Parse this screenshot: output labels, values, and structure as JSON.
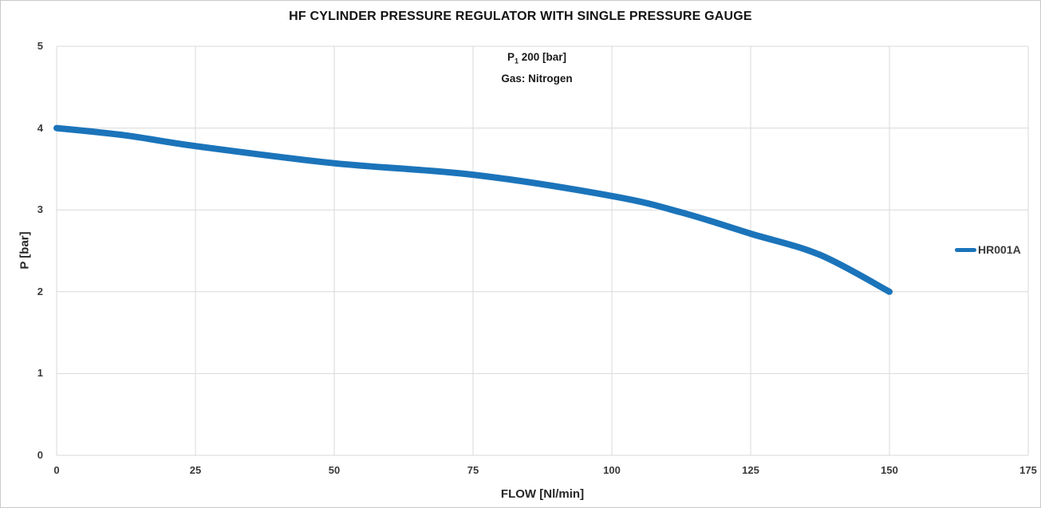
{
  "chart": {
    "annotation": {
      "p_base": "P",
      "p_sub": "1",
      "p_rest": " 200 [bar]",
      "line2": "Gas: Nitrogen"
    }
  },
  "chart_data": {
    "type": "line",
    "title": "HF CYLINDER PRESSURE REGULATOR WITH SINGLE PRESSURE GAUGE",
    "xlabel": "FLOW [Nl/min]",
    "ylabel": "P [bar]",
    "xlim": [
      0,
      175
    ],
    "ylim": [
      0,
      5
    ],
    "xticks": [
      0,
      25,
      50,
      75,
      100,
      125,
      150,
      175
    ],
    "yticks": [
      0,
      1,
      2,
      3,
      4,
      5
    ],
    "grid": true,
    "annotations": [
      "P1 200 [bar]",
      "Gas: Nitrogen"
    ],
    "legend": {
      "position": "right",
      "entries": [
        {
          "label": "HR001A",
          "color": "#1b74ba"
        }
      ]
    },
    "series": [
      {
        "name": "HR001A",
        "color": "#1b74ba",
        "line_width": 8,
        "x": [
          0,
          12.5,
          25,
          50,
          75,
          100,
          112.5,
          125,
          137.5,
          150
        ],
        "y": [
          4.0,
          3.91,
          3.78,
          3.57,
          3.43,
          3.17,
          2.97,
          2.71,
          2.45,
          2.0
        ]
      }
    ],
    "colors": {
      "grid": "#d9d9d9",
      "tick_text": "#3a3a3a",
      "title_text": "#141414"
    }
  }
}
